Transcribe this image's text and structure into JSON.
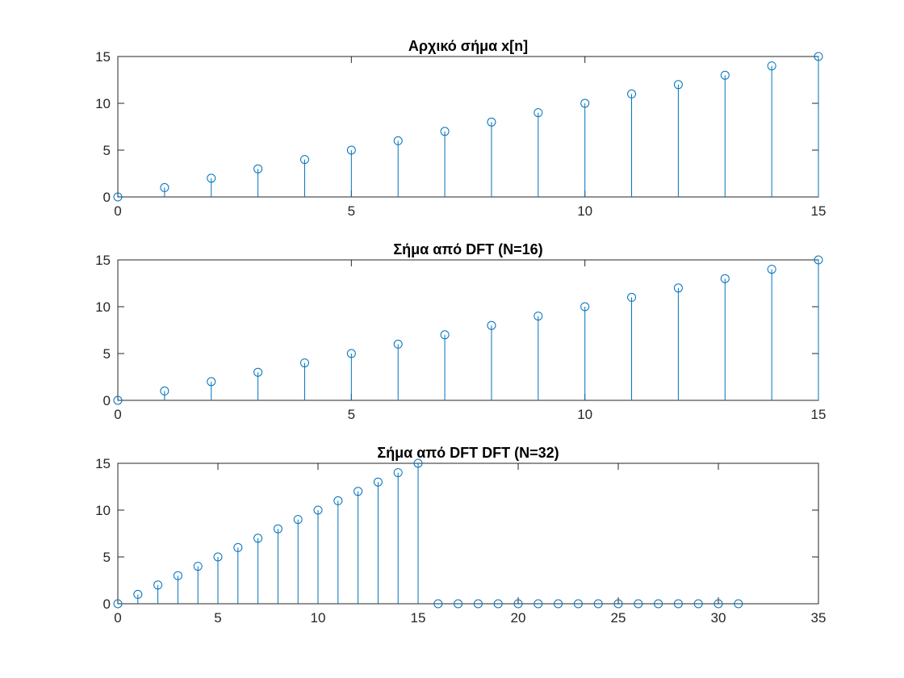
{
  "chart_data": [
    {
      "type": "stem",
      "title": "Αρχικό σήμα x[n]",
      "xlabel": "",
      "ylabel": "",
      "xlim": [
        0,
        15
      ],
      "ylim": [
        0,
        15
      ],
      "xticks": [
        0,
        5,
        10,
        15
      ],
      "yticks": [
        0,
        5,
        10,
        15
      ],
      "xtick_labels": [
        "0",
        "5",
        "10",
        "15"
      ],
      "ytick_labels": [
        "0",
        "5",
        "10",
        "15"
      ],
      "grid": false,
      "color": "#0072BD",
      "x": [
        0,
        1,
        2,
        3,
        4,
        5,
        6,
        7,
        8,
        9,
        10,
        11,
        12,
        13,
        14,
        15
      ],
      "values": [
        0,
        1,
        2,
        3,
        4,
        5,
        6,
        7,
        8,
        9,
        10,
        11,
        12,
        13,
        14,
        15
      ]
    },
    {
      "type": "stem",
      "title": "Σήμα από DFT (N=16)",
      "xlabel": "",
      "ylabel": "",
      "xlim": [
        0,
        15
      ],
      "ylim": [
        0,
        15
      ],
      "xticks": [
        0,
        5,
        10,
        15
      ],
      "yticks": [
        0,
        5,
        10,
        15
      ],
      "xtick_labels": [
        "0",
        "5",
        "10",
        "15"
      ],
      "ytick_labels": [
        "0",
        "5",
        "10",
        "15"
      ],
      "grid": false,
      "color": "#0072BD",
      "x": [
        0,
        1,
        2,
        3,
        4,
        5,
        6,
        7,
        8,
        9,
        10,
        11,
        12,
        13,
        14,
        15
      ],
      "values": [
        0,
        1,
        2,
        3,
        4,
        5,
        6,
        7,
        8,
        9,
        10,
        11,
        12,
        13,
        14,
        15
      ]
    },
    {
      "type": "stem",
      "title": "Σήμα από DFT DFT (N=32)",
      "xlabel": "",
      "ylabel": "",
      "xlim": [
        0,
        35
      ],
      "ylim": [
        0,
        15
      ],
      "xticks": [
        0,
        5,
        10,
        15,
        20,
        25,
        30,
        35
      ],
      "yticks": [
        0,
        5,
        10,
        15
      ],
      "xtick_labels": [
        "0",
        "5",
        "10",
        "15",
        "20",
        "25",
        "30",
        "35"
      ],
      "ytick_labels": [
        "0",
        "5",
        "10",
        "15"
      ],
      "grid": false,
      "color": "#0072BD",
      "x": [
        0,
        1,
        2,
        3,
        4,
        5,
        6,
        7,
        8,
        9,
        10,
        11,
        12,
        13,
        14,
        15,
        16,
        17,
        18,
        19,
        20,
        21,
        22,
        23,
        24,
        25,
        26,
        27,
        28,
        29,
        30,
        31
      ],
      "values": [
        0,
        1,
        2,
        3,
        4,
        5,
        6,
        7,
        8,
        9,
        10,
        11,
        12,
        13,
        14,
        15,
        0,
        0,
        0,
        0,
        0,
        0,
        0,
        0,
        0,
        0,
        0,
        0,
        0,
        0,
        0,
        0
      ]
    }
  ]
}
